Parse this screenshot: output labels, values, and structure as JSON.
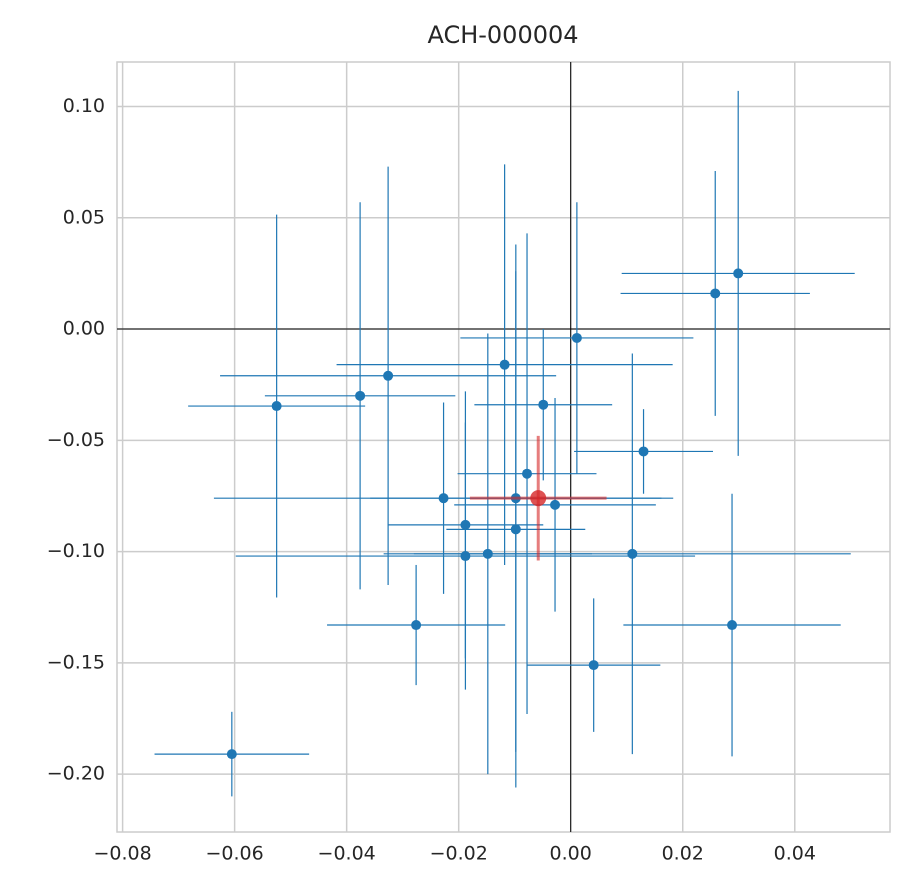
{
  "chart_data": {
    "type": "errorbar-scatter",
    "title": "ACH-000004",
    "xlim": [
      -0.081,
      0.057
    ],
    "ylim": [
      -0.226,
      0.12
    ],
    "xticks": [
      {
        "value": -0.08,
        "label": "−0.08"
      },
      {
        "value": -0.06,
        "label": "−0.06"
      },
      {
        "value": -0.04,
        "label": "−0.04"
      },
      {
        "value": -0.02,
        "label": "−0.02"
      },
      {
        "value": 0,
        "label": "0.00"
      },
      {
        "value": 0.02,
        "label": "0.02"
      },
      {
        "value": 0.04,
        "label": "0.04"
      }
    ],
    "yticks": [
      {
        "value": -0.2,
        "label": "−0.20"
      },
      {
        "value": -0.15,
        "label": "−0.15"
      },
      {
        "value": -0.1,
        "label": "−0.10"
      },
      {
        "value": -0.05,
        "label": "−0.05"
      },
      {
        "value": 0,
        "label": "0.00"
      },
      {
        "value": 0.05,
        "label": "0.05"
      },
      {
        "value": 0.1,
        "label": "0.10"
      }
    ],
    "grid": true,
    "zero_lines": true,
    "series": [
      {
        "color": "#1f77b4",
        "x": [
          -0.0605,
          -0.0525,
          -0.0376,
          -0.0326,
          -0.0118,
          0.0011,
          -0.0049,
          0.0258,
          0.0299,
          0.013,
          -0.0078,
          -0.0227,
          -0.0098,
          -0.0028,
          -0.0188,
          -0.0098,
          -0.0148,
          -0.0188,
          0.011,
          -0.0276,
          0.0288,
          0.0041
        ],
        "values": [
          -0.191,
          -0.0346,
          -0.03,
          -0.021,
          -0.016,
          -0.004,
          -0.034,
          0.016,
          0.025,
          -0.055,
          -0.065,
          -0.076,
          -0.076,
          -0.079,
          -0.088,
          -0.09,
          -0.101,
          -0.102,
          -0.101,
          -0.133,
          -0.133,
          -0.151
        ],
        "xerr": [
          0.0138,
          0.0158,
          0.017,
          0.03,
          0.03,
          0.0208,
          0.0123,
          0.0169,
          0.0208,
          0.0124,
          0.0124,
          0.041,
          0.026,
          0.018,
          0.0139,
          0.0124,
          0.0186,
          0.041,
          0.039,
          0.0159,
          0.0194,
          0.0119
        ],
        "yerr": [
          0.019,
          0.086,
          0.087,
          0.094,
          0.09,
          0.061,
          0.034,
          0.055,
          0.082,
          0.019,
          0.108,
          0.043,
          0.114,
          0.048,
          0.06,
          0.116,
          0.099,
          0.06,
          0.09,
          0.027,
          0.059,
          0.03
        ]
      },
      {
        "color": "#d62728",
        "x": [
          -0.0058
        ],
        "values": [
          -0.076
        ],
        "xerr": [
          0.0122
        ],
        "yerr": [
          0.028
        ]
      }
    ]
  }
}
